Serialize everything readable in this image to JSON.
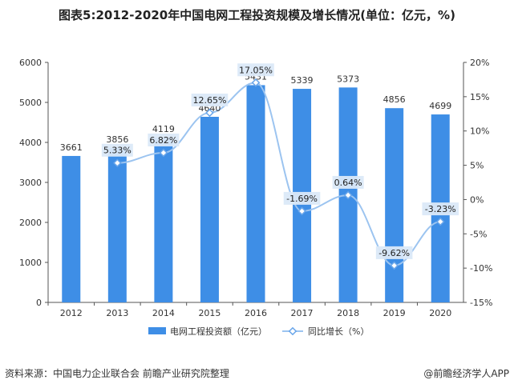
{
  "title": "图表5:2012-2020年中国电网工程投资规模及增长情况(单位：亿元，%)",
  "source": "资料来源：中国电力企业联合会 前瞻产业研究院整理",
  "credit": "@前瞻经济学人APP",
  "colors": {
    "bar": "#3e8ee6",
    "line": "#9cc4f0",
    "marker": "#6aa6ea"
  },
  "chart_data": {
    "type": "bar+line",
    "categories": [
      "2012",
      "2013",
      "2014",
      "2015",
      "2016",
      "2017",
      "2018",
      "2019",
      "2020"
    ],
    "series": [
      {
        "name": "电网工程投资额（亿元）",
        "type": "bar",
        "axis": "left",
        "values": [
          3661,
          3856,
          4119,
          4640,
          5431,
          5339,
          5373,
          4856,
          4699
        ],
        "labels": [
          "3661",
          "3856",
          "4119",
          "4640",
          "5431",
          "5339",
          "5373",
          "4856",
          "4699"
        ]
      },
      {
        "name": "同比增长（%）",
        "type": "line",
        "axis": "right",
        "values": [
          null,
          5.33,
          6.82,
          12.65,
          17.05,
          -1.69,
          0.64,
          -9.62,
          -3.23
        ],
        "labels": [
          "",
          "5.33%",
          "6.82%",
          "12.65%",
          "17.05%",
          "-1.69%",
          "0.64%",
          "-9.62%",
          "-3.23%"
        ]
      }
    ],
    "yleft": {
      "min": 0,
      "max": 6000,
      "ticks": [
        "0",
        "1000",
        "2000",
        "3000",
        "4000",
        "5000",
        "6000"
      ]
    },
    "yright": {
      "min": -15,
      "max": 20,
      "ticks": [
        "-15%",
        "-10%",
        "-5%",
        "0%",
        "5%",
        "10%",
        "15%",
        "20%"
      ]
    },
    "legend": [
      "电网工程投资额（亿元）",
      "同比增长（%）"
    ]
  }
}
